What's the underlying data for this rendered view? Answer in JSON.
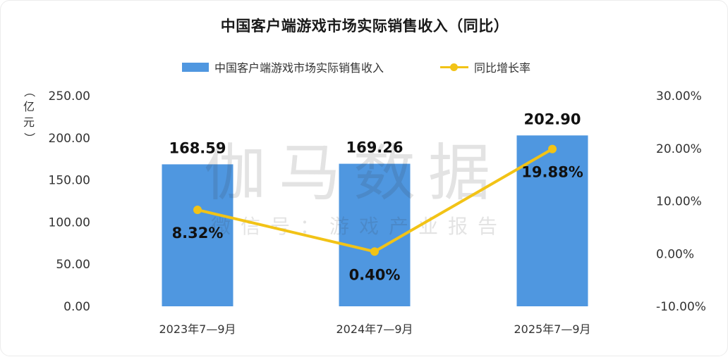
{
  "chart_data": {
    "type": "bar",
    "title": "中国客户端游戏市场实际销售收入（同比）",
    "categories": [
      "2023年7—9月",
      "2024年7—9月",
      "2025年7—9月"
    ],
    "series": [
      {
        "name": "中国客户端游戏市场实际销售收入",
        "type": "bar",
        "axis": "left",
        "values": [
          168.59,
          169.26,
          202.9
        ],
        "labels": [
          "168.59",
          "169.26",
          "202.90"
        ],
        "color": "#4f97e0"
      },
      {
        "name": "同比增长率",
        "type": "line",
        "axis": "right",
        "values": [
          8.32,
          0.4,
          19.88
        ],
        "labels": [
          "8.32%",
          "0.40%",
          "19.88%"
        ],
        "color": "#f2c316"
      }
    ],
    "y_left": {
      "unit_chars": [
        "（",
        "亿",
        "元",
        "）"
      ],
      "range": [
        0,
        250
      ],
      "ticks": [
        "0.00",
        "50.00",
        "100.00",
        "150.00",
        "200.00",
        "250.00"
      ]
    },
    "y_right": {
      "range": [
        -10,
        30
      ],
      "ticks": [
        "-10.00%",
        "0.00%",
        "10.00%",
        "20.00%",
        "30.00%"
      ]
    },
    "legend_position": "top-center",
    "grid": false
  },
  "watermark": {
    "main": "伽马数据",
    "sub": "微信号：游戏产业报告"
  }
}
